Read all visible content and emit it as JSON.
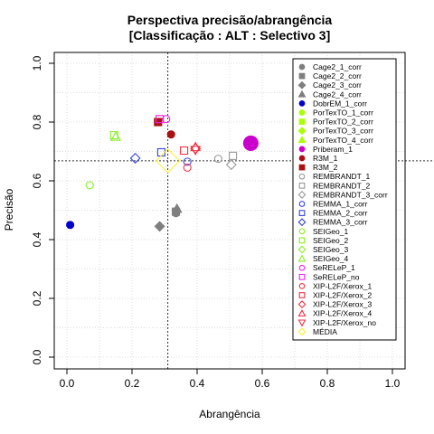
{
  "chart_data": {
    "type": "scatter",
    "title": "Perspectiva precisão/abrangência",
    "subtitle": "[Classificação : ALT : Selectivo 3]",
    "xlabel": "Abrangência",
    "ylabel": "Precisão",
    "xlim": [
      0,
      1
    ],
    "ylim": [
      0,
      1
    ],
    "xticks": [
      "0.0",
      "0.2",
      "0.4",
      "0.6",
      "0.8",
      "1.0"
    ],
    "yticks": [
      "0.0",
      "0.2",
      "0.4",
      "0.6",
      "0.8",
      "1.0"
    ],
    "grid": true,
    "legend_position": "top-right",
    "reference_lines": {
      "vertical_x": 0.31,
      "horizontal_y": 0.668
    },
    "series": [
      {
        "name": "Cage2_1_corr",
        "shape": "circle",
        "filled": true,
        "color": "#7f7f7f",
        "x": 0.335,
        "y": 0.49
      },
      {
        "name": "Cage2_2_corr",
        "shape": "square",
        "filled": true,
        "color": "#7f7f7f",
        "x": 0.335,
        "y": 0.495
      },
      {
        "name": "Cage2_3_corr",
        "shape": "diamond",
        "filled": true,
        "color": "#7f7f7f",
        "x": 0.285,
        "y": 0.445
      },
      {
        "name": "Cage2_4_corr",
        "shape": "triangle",
        "filled": true,
        "color": "#7f7f7f",
        "x": 0.338,
        "y": 0.505
      },
      {
        "name": "DobrEM_1_corr",
        "shape": "circle",
        "filled": true,
        "color": "#0000cc",
        "x": 0.01,
        "y": 0.45
      },
      {
        "name": "PorTexTO_1_corr",
        "shape": "circle",
        "filled": true,
        "color": "#aaff00",
        "x": null,
        "y": null
      },
      {
        "name": "PorTexTO_2_corr",
        "shape": "square",
        "filled": true,
        "color": "#aaff00",
        "x": null,
        "y": null
      },
      {
        "name": "PorTexTO_3_corr",
        "shape": "diamond",
        "filled": true,
        "color": "#aaff00",
        "x": null,
        "y": null
      },
      {
        "name": "PorTexTO_4_corr",
        "shape": "triangle",
        "filled": true,
        "color": "#aaff00",
        "x": null,
        "y": null
      },
      {
        "name": "Priberam_1",
        "shape": "circle",
        "filled": true,
        "color": "#cc00cc",
        "x": 0.565,
        "y": 0.728
      },
      {
        "name": "R3M_1",
        "shape": "circle",
        "filled": true,
        "color": "#aa1111",
        "x": 0.32,
        "y": 0.758
      },
      {
        "name": "R3M_2",
        "shape": "square",
        "filled": true,
        "color": "#aa1111",
        "x": 0.28,
        "y": 0.8
      },
      {
        "name": "REMBRANDT_1",
        "shape": "circle",
        "filled": false,
        "color": "#999999",
        "x": 0.465,
        "y": 0.675
      },
      {
        "name": "REMBRANDT_2",
        "shape": "square",
        "filled": false,
        "color": "#999999",
        "x": 0.51,
        "y": 0.685
      },
      {
        "name": "REMBRANDT_3_corr",
        "shape": "diamond",
        "filled": false,
        "color": "#999999",
        "x": 0.505,
        "y": 0.655
      },
      {
        "name": "REMMA_1_corr",
        "shape": "circle",
        "filled": false,
        "color": "#3344dd",
        "x": 0.37,
        "y": 0.665
      },
      {
        "name": "REMMA_2_corr",
        "shape": "square",
        "filled": false,
        "color": "#3344dd",
        "x": 0.29,
        "y": 0.697
      },
      {
        "name": "REMMA_3_corr",
        "shape": "diamond",
        "filled": false,
        "color": "#3344dd",
        "x": 0.21,
        "y": 0.677
      },
      {
        "name": "SEIGeo_1",
        "shape": "circle",
        "filled": false,
        "color": "#88ee22",
        "x": 0.07,
        "y": 0.585
      },
      {
        "name": "SEIGeo_2",
        "shape": "square",
        "filled": false,
        "color": "#88ee22",
        "x": 0.145,
        "y": 0.755
      },
      {
        "name": "SEIGeo_3",
        "shape": "diamond",
        "filled": false,
        "color": "#88ee22",
        "x": null,
        "y": null
      },
      {
        "name": "SEIGeo_4",
        "shape": "triangle",
        "filled": false,
        "color": "#88ee22",
        "x": 0.15,
        "y": 0.75
      },
      {
        "name": "SeRELeP_1",
        "shape": "circle",
        "filled": false,
        "color": "#ee22ee",
        "x": 0.305,
        "y": 0.81
      },
      {
        "name": "SeRELeP_no",
        "shape": "square",
        "filled": false,
        "color": "#ee22ee",
        "x": 0.285,
        "y": 0.81
      },
      {
        "name": "XIP-L2F/Xerox_1",
        "shape": "circle",
        "filled": false,
        "color": "#ee3344",
        "x": 0.37,
        "y": 0.645
      },
      {
        "name": "XIP-L2F/Xerox_2",
        "shape": "square",
        "filled": false,
        "color": "#ee3344",
        "x": 0.36,
        "y": 0.703
      },
      {
        "name": "XIP-L2F/Xerox_3",
        "shape": "diamond",
        "filled": false,
        "color": "#ee3344",
        "x": 0.395,
        "y": 0.71
      },
      {
        "name": "XIP-L2F/Xerox_4",
        "shape": "triangle",
        "filled": false,
        "color": "#ee3344",
        "x": 0.395,
        "y": 0.715
      },
      {
        "name": "XIP-L2F/Xerox_no",
        "shape": "triangle-down",
        "filled": false,
        "color": "#ee3344",
        "x": 0.395,
        "y": 0.705
      },
      {
        "name": "MÉDIA",
        "shape": "diamond",
        "filled": false,
        "color": "#ffee33",
        "x": 0.31,
        "y": 0.668
      }
    ]
  }
}
